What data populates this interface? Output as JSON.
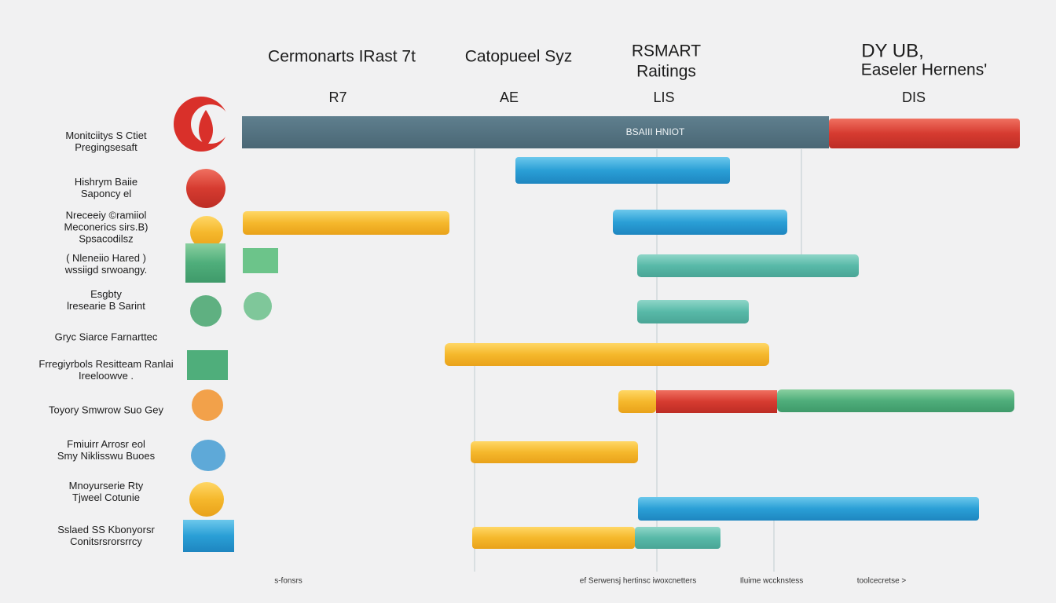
{
  "header": {
    "columns": [
      {
        "title": [
          "Cermonarts IRast 7t"
        ],
        "label": "R7"
      },
      {
        "title": [
          "Catopueel Syz"
        ],
        "label": "AE"
      },
      {
        "title": [
          "RSMART",
          "Raitings"
        ],
        "label": "LIS"
      },
      {
        "title": [
          "DY UB,",
          "Easeler Hernens'"
        ],
        "label": "DIS"
      }
    ]
  },
  "top_bar_label": "BSAIII HNIOT",
  "rows": [
    [
      "Monitciitys S Ctiet",
      "Pregingsesaft"
    ],
    [
      "Hishrym Baiie",
      "Saponcy el"
    ],
    [
      "Nreceeiy ©ramiiol",
      "Meconerics sirs.B)",
      "Spsacodilsz"
    ],
    [
      "( Nleneiio Hared )",
      "wssiigd srwoangy."
    ],
    [
      "Esgbty",
      "lresearie B Sarint"
    ],
    [
      "Gryc Siarce Farnarttec"
    ],
    [
      "Frregiyrbols Resitteam Ranlai",
      "Ireeloowve ."
    ],
    [
      "Toyory Smwrow Suo Gey"
    ],
    [
      "Fmiuirr Arrosr eol",
      "Smy Niklisswu Buoes"
    ],
    [
      "Mnoyurserie Rty",
      "Tjweel Cotunie"
    ],
    [
      "Sslaed SS Kbonyorsr",
      "Conitsrsrorsrrcy"
    ]
  ],
  "footer": [
    "s-fonsrs",
    "ef Serwensj hertinsc iwoxcnetters",
    "Iluime wccknstess",
    "toolcecretse >"
  ]
}
